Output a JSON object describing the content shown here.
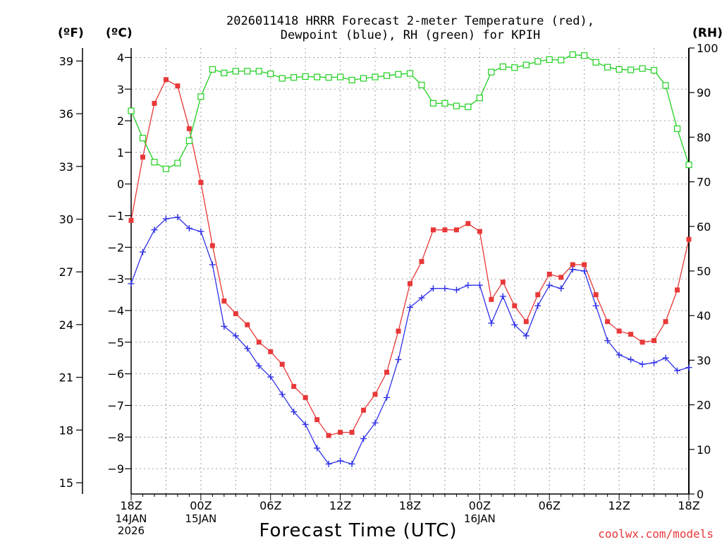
{
  "chart_data": {
    "type": "line",
    "title_line1": "2026011418 HRRR Forecast 2-meter Temperature (red),",
    "title_line2": "Dewpoint (blue), RH (green) for KPIH",
    "xlabel": "Forecast Time (UTC)",
    "credit": "coolwx.com/models",
    "units": {
      "fahrenheit": "(ºF)",
      "celsius": "(ºC)",
      "rh": "(RH)"
    },
    "x_range_hours": [
      0,
      48
    ],
    "celsius_range": [
      -9.8,
      4.3
    ],
    "rh_range": [
      0,
      100
    ],
    "left_c_ticks": [
      "4",
      "3",
      "2",
      "1",
      "0",
      "−1",
      "−2",
      "−3",
      "−4",
      "−5",
      "−6",
      "−7",
      "−8",
      "−9"
    ],
    "left_c_tick_values": [
      4,
      3,
      2,
      1,
      0,
      -1,
      -2,
      -3,
      -4,
      -5,
      -6,
      -7,
      -8,
      -9
    ],
    "left_f_ticks": [
      "39",
      "36",
      "33",
      "30",
      "27",
      "24",
      "21",
      "18",
      "15"
    ],
    "left_f_tick_values": [
      39,
      36,
      33,
      30,
      27,
      24,
      21,
      18,
      15
    ],
    "right_rh_ticks": [
      "100",
      "90",
      "80",
      "70",
      "60",
      "50",
      "40",
      "30",
      "20",
      "10",
      "0"
    ],
    "right_rh_tick_values": [
      100,
      90,
      80,
      70,
      60,
      50,
      40,
      30,
      20,
      10,
      0
    ],
    "x_ticks": [
      {
        "hour": 0,
        "label": "18Z",
        "date": [
          "14JAN",
          "2026"
        ]
      },
      {
        "hour": 6,
        "label": "00Z",
        "date": [
          "15JAN"
        ]
      },
      {
        "hour": 12,
        "label": "06Z",
        "date": []
      },
      {
        "hour": 18,
        "label": "12Z",
        "date": []
      },
      {
        "hour": 24,
        "label": "18Z",
        "date": []
      },
      {
        "hour": 30,
        "label": "00Z",
        "date": [
          "16JAN"
        ]
      },
      {
        "hour": 36,
        "label": "06Z",
        "date": []
      },
      {
        "hour": 42,
        "label": "12Z",
        "date": []
      },
      {
        "hour": 48,
        "label": "18Z",
        "date": []
      }
    ],
    "series": [
      {
        "name": "Temperature",
        "unit": "C",
        "color": "#e83838",
        "marker": "filled-square",
        "values": [
          -1.15,
          0.85,
          2.55,
          3.3,
          3.1,
          1.75,
          0.05,
          -1.95,
          -3.7,
          -4.1,
          -4.45,
          -5.0,
          -5.3,
          -5.7,
          -6.4,
          -6.75,
          -7.45,
          -7.95,
          -7.85,
          -7.85,
          -7.15,
          -6.65,
          -5.95,
          -4.65,
          -3.15,
          -2.45,
          -1.45,
          -1.45,
          -1.45,
          -1.25,
          -1.5,
          -3.65,
          -3.1,
          -3.85,
          -4.35,
          -3.5,
          -2.85,
          -2.95,
          -2.55,
          -2.55,
          -3.5,
          -4.35,
          -4.65,
          -4.75,
          -5.0,
          -4.95,
          -4.35,
          -3.35,
          -1.75
        ]
      },
      {
        "name": "Dewpoint",
        "unit": "C",
        "color": "#3030e8",
        "marker": "plus",
        "values": [
          -3.15,
          -2.15,
          -1.45,
          -1.1,
          -1.05,
          -1.4,
          -1.5,
          -2.55,
          -4.5,
          -4.8,
          -5.2,
          -5.75,
          -6.1,
          -6.65,
          -7.2,
          -7.6,
          -8.35,
          -8.85,
          -8.75,
          -8.85,
          -8.05,
          -7.55,
          -6.75,
          -5.55,
          -3.9,
          -3.6,
          -3.3,
          -3.3,
          -3.35,
          -3.2,
          -3.2,
          -4.4,
          -3.55,
          -4.45,
          -4.8,
          -3.85,
          -3.2,
          -3.3,
          -2.7,
          -2.75,
          -3.85,
          -4.95,
          -5.4,
          -5.55,
          -5.7,
          -5.65,
          -5.5,
          -5.9,
          -5.8
        ]
      },
      {
        "name": "RH",
        "unit": "%",
        "color": "#20d020",
        "marker": "open-square",
        "values": [
          85.9,
          79.8,
          74.4,
          72.9,
          74.2,
          79.2,
          89.1,
          95.2,
          94.4,
          94.8,
          94.8,
          94.8,
          94.2,
          93.2,
          93.4,
          93.6,
          93.5,
          93.4,
          93.5,
          92.8,
          93.2,
          93.5,
          93.8,
          94.1,
          94.3,
          91.7,
          87.6,
          87.6,
          87.0,
          86.8,
          88.8,
          94.6,
          95.8,
          95.6,
          96.2,
          97.0,
          97.4,
          97.3,
          98.5,
          98.3,
          96.8,
          95.7,
          95.2,
          95.1,
          95.4,
          95.0,
          91.6,
          81.9,
          73.8
        ]
      }
    ]
  }
}
